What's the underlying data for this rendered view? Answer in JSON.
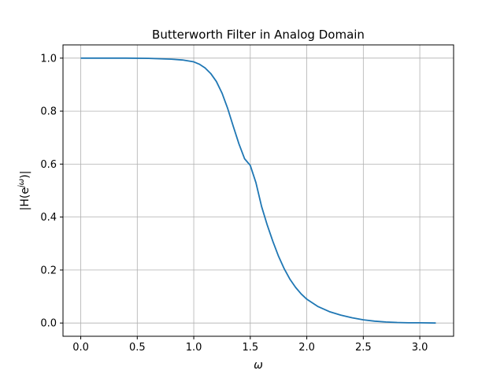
{
  "chart_data": {
    "type": "line",
    "title": "Butterworth Filter in Analog Domain",
    "xlabel": "ω",
    "ylabel_parts": {
      "prefix": "|H(e",
      "superscript": "jω",
      "suffix": ")|"
    },
    "xlim": [
      -0.157,
      3.299
    ],
    "ylim": [
      -0.05,
      1.05
    ],
    "x_ticks": [
      0.0,
      0.5,
      1.0,
      1.5,
      2.0,
      2.5,
      3.0
    ],
    "x_tick_labels": [
      "0.0",
      "0.5",
      "1.0",
      "1.5",
      "2.0",
      "2.5",
      "3.0"
    ],
    "y_ticks": [
      0.0,
      0.2,
      0.4,
      0.6,
      0.8,
      1.0
    ],
    "y_tick_labels": [
      "0.0",
      "0.2",
      "0.4",
      "0.6",
      "0.8",
      "1.0"
    ],
    "grid": true,
    "series": [
      {
        "color": "#1f77b4",
        "x": [
          0.0,
          0.2,
          0.4,
          0.6,
          0.8,
          0.9,
          1.0,
          1.05,
          1.1,
          1.15,
          1.2,
          1.25,
          1.3,
          1.35,
          1.4,
          1.45,
          1.5,
          1.55,
          1.6,
          1.65,
          1.7,
          1.75,
          1.8,
          1.85,
          1.9,
          1.95,
          2.0,
          2.1,
          2.2,
          2.3,
          2.4,
          2.5,
          2.6,
          2.7,
          2.8,
          2.9,
          3.0,
          3.1416
        ],
        "y": [
          1.0,
          1.0,
          1.0,
          0.999,
          0.996,
          0.993,
          0.986,
          0.977,
          0.963,
          0.942,
          0.912,
          0.868,
          0.81,
          0.742,
          0.676,
          0.62,
          0.595,
          0.53,
          0.44,
          0.37,
          0.308,
          0.252,
          0.205,
          0.166,
          0.135,
          0.11,
          0.09,
          0.062,
          0.043,
          0.03,
          0.02,
          0.012,
          0.007,
          0.004,
          0.002,
          0.001,
          0.001,
          0.0
        ]
      }
    ]
  }
}
